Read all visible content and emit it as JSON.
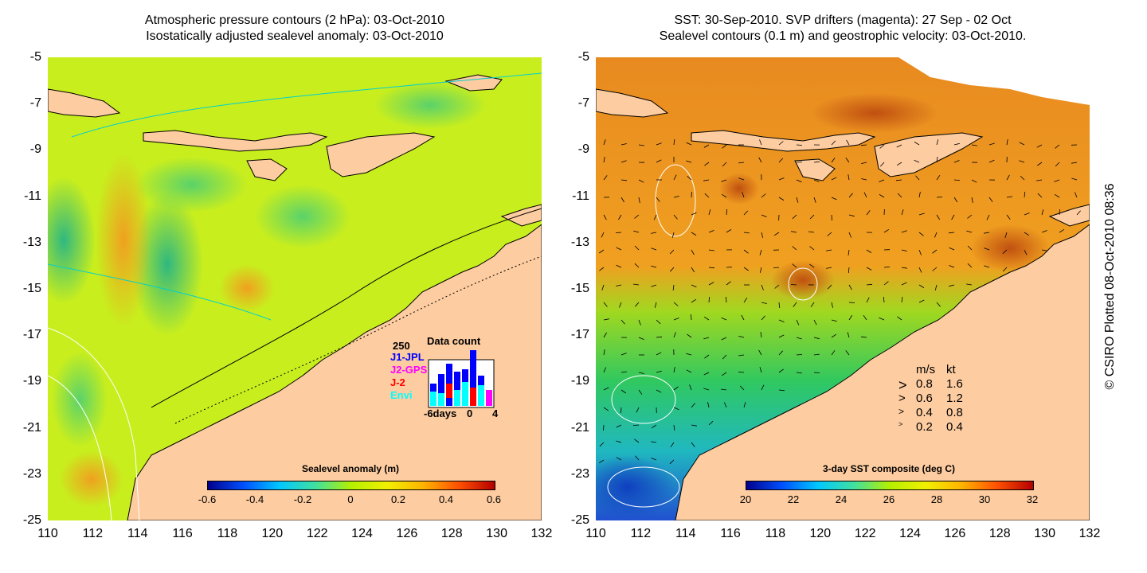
{
  "left_panel": {
    "title_line1": "Atmospheric pressure contours (2 hPa): 03-Oct-2010",
    "title_line2": "Isostatically adjusted sealevel anomaly: 03-Oct-2010",
    "colorbar": {
      "label": "Sealevel anomaly (m)",
      "ticks": [
        "-0.6",
        "-0.4",
        "-0.2",
        "0",
        "0.2",
        "0.4",
        "0.6"
      ],
      "colors": [
        "#00008c",
        "#0050ff",
        "#00c8ff",
        "#40e0a0",
        "#b4f000",
        "#f0f000",
        "#ffb400",
        "#ff5000",
        "#b40000"
      ]
    },
    "data_count": {
      "title": "Data count",
      "max_label": "250",
      "legend": [
        {
          "name": "J1-JPL",
          "color": "#0000ff"
        },
        {
          "name": "J2-GPS",
          "color": "#ff00ff"
        },
        {
          "name": "J-2",
          "color": "#ff0000"
        },
        {
          "name": "Envi",
          "color": "#00ffff"
        }
      ],
      "axis_labels": [
        "-6days",
        "0",
        "4"
      ]
    }
  },
  "right_panel": {
    "title_line1": "SST: 30-Sep-2010. SVP drifters (magenta): 27 Sep - 02 Oct",
    "title_line2": "Sealevel contours (0.1 m) and geostrophic velocity: 03-Oct-2010.",
    "colorbar": {
      "label": "3-day SST composite (deg C)",
      "ticks": [
        "20",
        "22",
        "24",
        "26",
        "28",
        "30",
        "32"
      ],
      "colors": [
        "#00008c",
        "#0050ff",
        "#00c8ff",
        "#40e0a0",
        "#b4f000",
        "#f0f000",
        "#ffb400",
        "#ff5000",
        "#b40000"
      ]
    },
    "velocity_legend": {
      "header_ms": "m/s",
      "header_kt": "kt",
      "rows": [
        {
          "ms": "0.8",
          "kt": "1.6"
        },
        {
          "ms": "0.6",
          "kt": "1.2"
        },
        {
          "ms": "0.4",
          "kt": "0.8"
        },
        {
          "ms": "0.2",
          "kt": "0.4"
        }
      ]
    }
  },
  "axes": {
    "lat_ticks": [
      "-5",
      "-7",
      "-9",
      "-11",
      "-13",
      "-15",
      "-17",
      "-19",
      "-21",
      "-23",
      "-25"
    ],
    "lon_ticks": [
      "110",
      "112",
      "114",
      "116",
      "118",
      "120",
      "122",
      "124",
      "126",
      "128",
      "130",
      "132"
    ]
  },
  "colors": {
    "land": "#fdcca0",
    "left_ocean": "#c8ee1e",
    "right_ocean_warm": "#f0a020",
    "right_ocean_cool": "#30c860"
  },
  "credit": "© CSIRO Plotted 08-Oct-2010 08:36"
}
